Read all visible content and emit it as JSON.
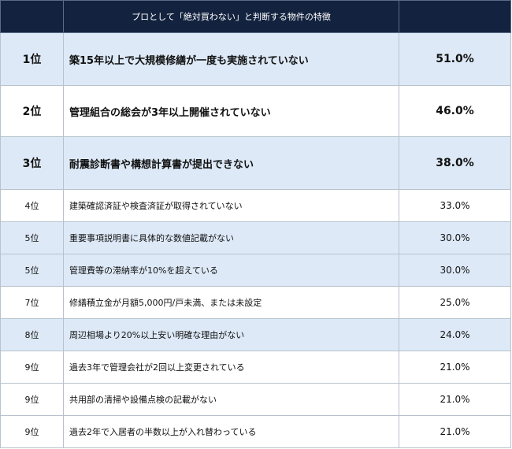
{
  "table": {
    "header": {
      "rank": "",
      "title": "プロとして「絶対買わない」と判断する物件の特徴",
      "value": ""
    },
    "rows": [
      {
        "rank": "1位",
        "text": "築15年以上で大規模修繕が一度も実施されていない",
        "percent": "51.0%"
      },
      {
        "rank": "2位",
        "text": "管理組合の総会が3年以上開催されていない",
        "percent": "46.0%"
      },
      {
        "rank": "3位",
        "text": "耐震診断書や構想計算書が提出できない",
        "percent": "38.0%"
      },
      {
        "rank": "4位",
        "text": "建築確認済証や検査済証が取得されていない",
        "percent": "33.0%"
      },
      {
        "rank": "5位",
        "text": "重要事項説明書に具体的な数値記載がない",
        "percent": "30.0%"
      },
      {
        "rank": "5位",
        "text": "管理費等の滞納率が10%を超えている",
        "percent": "30.0%"
      },
      {
        "rank": "7位",
        "text": "修繕積立金が月額5,000円/戸未満、または未設定",
        "percent": "25.0%"
      },
      {
        "rank": "8位",
        "text": "周辺相場より20%以上安い明確な理由がない",
        "percent": "24.0%"
      },
      {
        "rank": "9位",
        "text": "過去3年で管理会社が2回以上変更されている",
        "percent": "21.0%"
      },
      {
        "rank": "9位",
        "text": "共用部の清掃や設備点検の記載がない",
        "percent": "21.0%"
      },
      {
        "rank": "9位",
        "text": "過去2年で入居者の半数以上が入れ替わっている",
        "percent": "21.0%"
      }
    ]
  },
  "colors": {
    "header_bg": "#13233f",
    "header_text": "#ffffff",
    "shaded_row": "#dde9f7",
    "plain_row": "#ffffff",
    "border": "#b9c2cc"
  }
}
